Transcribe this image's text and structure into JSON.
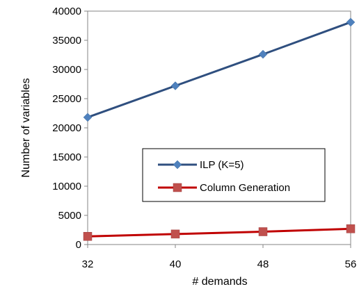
{
  "chart_data": {
    "type": "line",
    "title": "",
    "xlabel": "# demands",
    "ylabel": "Number of variables",
    "categories": [
      "32",
      "40",
      "48",
      "56"
    ],
    "ylim": [
      0,
      40000
    ],
    "y_ticks": [
      "0",
      "5000",
      "10000",
      "15000",
      "20000",
      "25000",
      "30000",
      "35000",
      "40000"
    ],
    "grid": false,
    "legend_position": "lower-right inside plot",
    "series": [
      {
        "name": "ILP (K=5)",
        "values": [
          21800,
          27200,
          32600,
          38100
        ],
        "color": "#2f4f7f",
        "marker_color": "#4f81bd",
        "marker": "diamond"
      },
      {
        "name": "Column Generation",
        "values": [
          1400,
          1800,
          2200,
          2700
        ],
        "color": "#c00000",
        "marker_color": "#c0504d",
        "marker": "square"
      }
    ]
  }
}
